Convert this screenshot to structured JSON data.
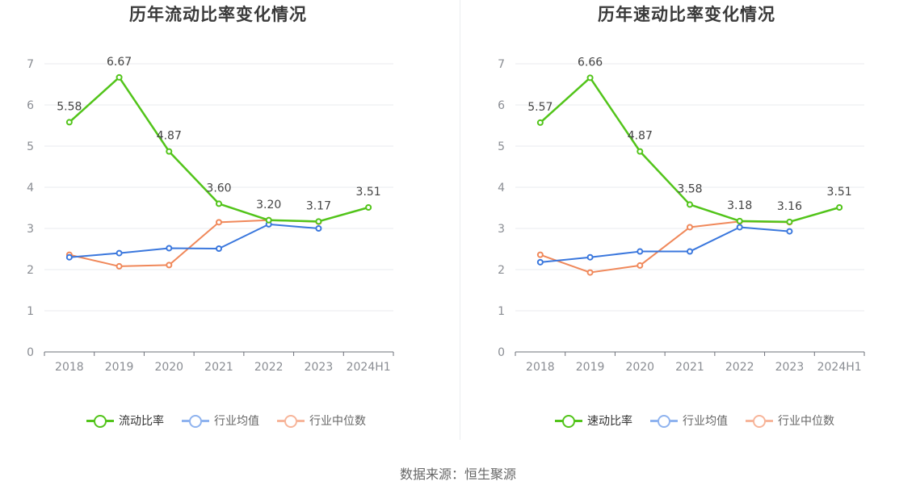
{
  "colors": {
    "primary": "#52c41a",
    "mean": "#3a77dd",
    "median": "#f0885a",
    "legend_mean": "#8fb3ef",
    "legend_median": "#f7b59a"
  },
  "chart_data": [
    {
      "type": "line",
      "title": "历年流动比率变化情况",
      "categories": [
        "2018",
        "2019",
        "2020",
        "2021",
        "2022",
        "2023",
        "2024H1"
      ],
      "ylim": [
        0,
        7
      ],
      "yticks": [
        "0",
        "1",
        "2",
        "3",
        "4",
        "5",
        "6",
        "7"
      ],
      "grid": true,
      "legend_position": "bottom",
      "series": [
        {
          "name": "流动比率",
          "values": [
            5.58,
            6.67,
            4.87,
            3.6,
            3.2,
            3.17,
            3.51
          ],
          "labels": [
            "5.58",
            "6.67",
            "4.87",
            "3.60",
            "3.20",
            "3.17",
            "3.51"
          ]
        },
        {
          "name": "行业均值",
          "values": [
            2.3,
            2.4,
            2.52,
            2.51,
            3.1,
            3.0,
            null
          ]
        },
        {
          "name": "行业中位数",
          "values": [
            2.36,
            2.08,
            2.11,
            3.15,
            3.2,
            3.16,
            null
          ]
        }
      ]
    },
    {
      "type": "line",
      "title": "历年速动比率变化情况",
      "categories": [
        "2018",
        "2019",
        "2020",
        "2021",
        "2022",
        "2023",
        "2024H1"
      ],
      "ylim": [
        0,
        7
      ],
      "yticks": [
        "0",
        "1",
        "2",
        "3",
        "4",
        "5",
        "6",
        "7"
      ],
      "grid": true,
      "legend_position": "bottom",
      "series": [
        {
          "name": "速动比率",
          "values": [
            5.57,
            6.66,
            4.87,
            3.58,
            3.18,
            3.16,
            3.51
          ],
          "labels": [
            "5.57",
            "6.66",
            "4.87",
            "3.58",
            "3.18",
            "3.16",
            "3.51"
          ]
        },
        {
          "name": "行业均值",
          "values": [
            2.18,
            2.3,
            2.44,
            2.44,
            3.03,
            2.93,
            null
          ]
        },
        {
          "name": "行业中位数",
          "values": [
            2.36,
            1.93,
            2.1,
            3.03,
            3.17,
            3.15,
            null
          ]
        }
      ]
    }
  ],
  "footer": "数据来源：恒生聚源"
}
